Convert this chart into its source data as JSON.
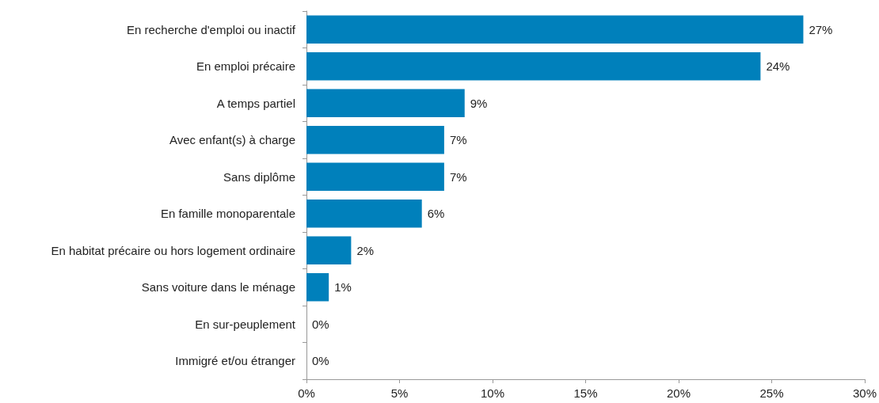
{
  "chart_data": {
    "type": "bar",
    "orientation": "horizontal",
    "categories": [
      "En recherche d'emploi ou inactif",
      "En emploi précaire",
      "A temps partiel",
      "Avec enfant(s) à charge",
      "Sans diplôme",
      "En famille monoparentale",
      "En habitat précaire ou hors logement ordinaire",
      "Sans voiture dans le ménage",
      "En sur-peuplement",
      "Immigré et/ou étranger"
    ],
    "values": [
      26.7,
      24.4,
      8.5,
      7.4,
      7.4,
      6.2,
      2.4,
      1.2,
      0,
      0
    ],
    "value_labels": [
      "27%",
      "24%",
      "9%",
      "7%",
      "7%",
      "6%",
      "2%",
      "1%",
      "0%",
      "0%"
    ],
    "color": "#0080bb",
    "xlim": [
      0,
      30
    ],
    "xticks": [
      {
        "value": 0,
        "label": "0%"
      },
      {
        "value": 5,
        "label": "5%"
      },
      {
        "value": 10,
        "label": "10%"
      },
      {
        "value": 15,
        "label": "15%"
      },
      {
        "value": 20,
        "label": "20%"
      },
      {
        "value": 25,
        "label": "25%"
      },
      {
        "value": 30,
        "label": "30%"
      }
    ],
    "grid": false
  }
}
